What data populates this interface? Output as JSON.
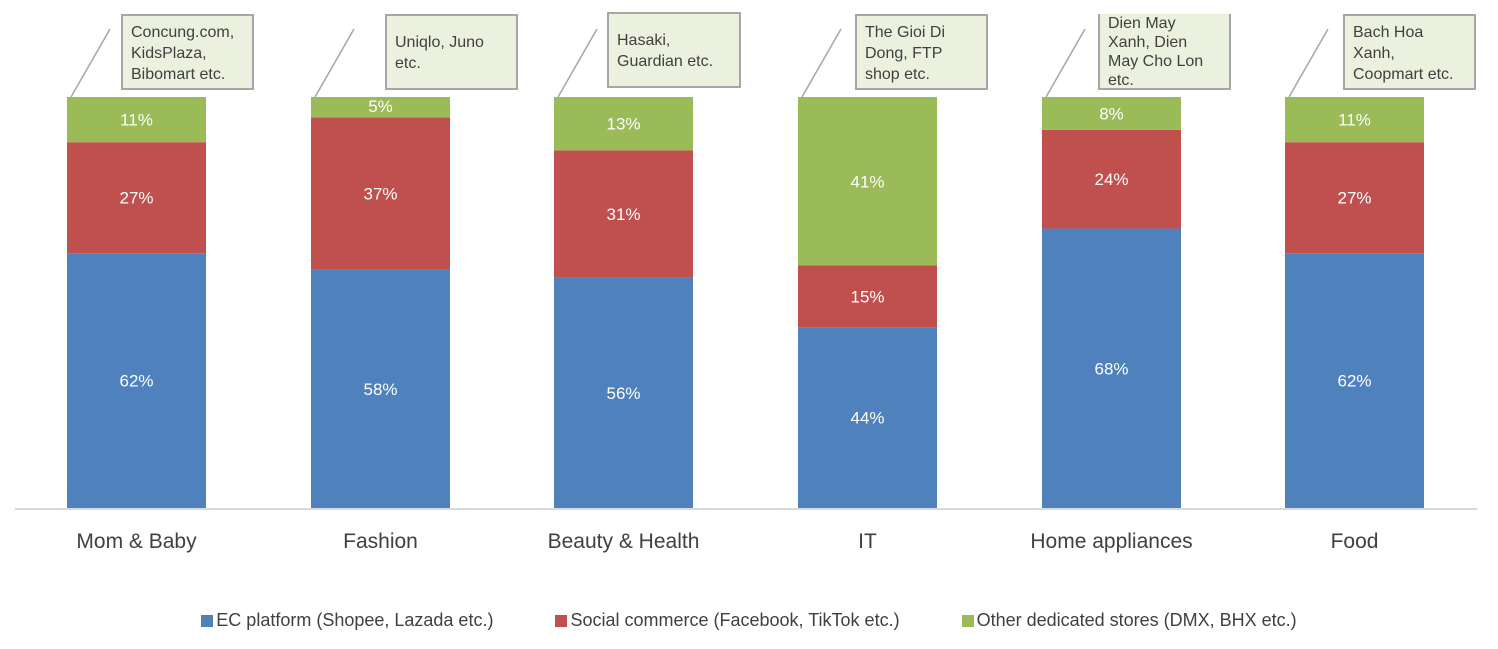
{
  "chart_data": {
    "type": "bar",
    "stacked": true,
    "title": "",
    "xlabel": "",
    "ylabel": "",
    "ylim": [
      0,
      100
    ],
    "grid": false,
    "legend_position": "bottom",
    "categories": [
      "Mom & Baby",
      "Fashion",
      "Beauty & Health",
      "IT",
      "Home appliances",
      "Food"
    ],
    "series": [
      {
        "name": "EC platform (Shopee, Lazada etc.)",
        "color": "#4f81bd",
        "values": [
          62,
          58,
          56,
          44,
          68,
          62
        ],
        "labels": [
          "62%",
          "58%",
          "56%",
          "44%",
          "68%",
          "62%"
        ]
      },
      {
        "name": "Social commerce (Facebook, TikTok etc.)",
        "color": "#c0504d",
        "values": [
          27,
          37,
          31,
          15,
          24,
          27
        ],
        "labels": [
          "27%",
          "37%",
          "31%",
          "15%",
          "24%",
          "27%"
        ]
      },
      {
        "name": "Other dedicated stores (DMX, BHX etc.)",
        "color": "#9bbb59",
        "values": [
          11,
          5,
          13,
          41,
          8,
          11
        ],
        "labels": [
          "11%",
          "5%",
          "13%",
          "41%",
          "8%",
          "11%"
        ]
      }
    ],
    "annotations": [
      "Concung.com,\nKidsPlaza,\nBibomart etc.",
      "Uniqlo, Juno\netc.",
      "Hasaki,\nGuardian etc.",
      "The Gioi Di\nDong, FTP\nshop etc.",
      "Dien May\nXanh, Dien\nMay Cho Lon\netc.",
      "Bach Hoa\nXanh,\nCoopmart etc."
    ]
  }
}
